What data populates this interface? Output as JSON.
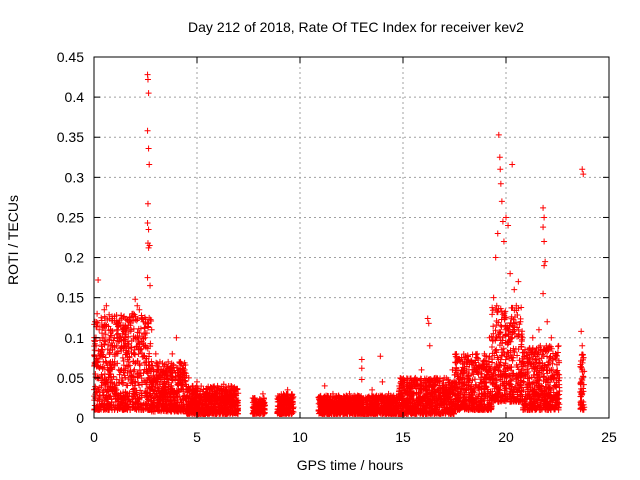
{
  "chart_data": {
    "type": "scatter",
    "title": "Day 212 of 2018, Rate Of TEC Index for receiver kev2",
    "xlabel": "GPS time / hours",
    "ylabel": "ROTI / TECUs",
    "xlim": [
      0,
      25
    ],
    "ylim": [
      0,
      0.45
    ],
    "xticks": [
      "0",
      "5",
      "10",
      "15",
      "20",
      "25"
    ],
    "yticks": [
      "0",
      "0.05",
      "0.1",
      "0.15",
      "0.2",
      "0.25",
      "0.3",
      "0.35",
      "0.4",
      "0.45"
    ],
    "grid": true,
    "marker": "+",
    "marker_color": "#ff0000",
    "series": [
      {
        "name": "ROTI",
        "points": [
          [
            0.05,
            0.12
          ],
          [
            0.1,
            0.09
          ],
          [
            0.15,
            0.13
          ],
          [
            0.2,
            0.172
          ],
          [
            0.25,
            0.11
          ],
          [
            0.3,
            0.08
          ],
          [
            0.35,
            0.125
          ],
          [
            0.4,
            0.1
          ],
          [
            0.45,
            0.07
          ],
          [
            0.5,
            0.135
          ],
          [
            0.55,
            0.095
          ],
          [
            0.6,
            0.14
          ],
          [
            0.7,
            0.06
          ],
          [
            0.8,
            0.11
          ],
          [
            0.9,
            0.085
          ],
          [
            1.0,
            0.07
          ],
          [
            1.1,
            0.09
          ],
          [
            1.2,
            0.06
          ],
          [
            1.3,
            0.1
          ],
          [
            1.4,
            0.075
          ],
          [
            1.5,
            0.09
          ],
          [
            1.6,
            0.065
          ],
          [
            1.7,
            0.12
          ],
          [
            1.8,
            0.11
          ],
          [
            1.9,
            0.13
          ],
          [
            2.0,
            0.148
          ],
          [
            2.1,
            0.14
          ],
          [
            2.2,
            0.135
          ],
          [
            2.3,
            0.125
          ],
          [
            2.4,
            0.12
          ],
          [
            2.5,
            0.1
          ],
          [
            2.6,
            0.428
          ],
          [
            2.62,
            0.422
          ],
          [
            2.65,
            0.405
          ],
          [
            2.6,
            0.358
          ],
          [
            2.65,
            0.336
          ],
          [
            2.68,
            0.316
          ],
          [
            2.62,
            0.267
          ],
          [
            2.6,
            0.243
          ],
          [
            2.65,
            0.235
          ],
          [
            2.62,
            0.218
          ],
          [
            2.65,
            0.212
          ],
          [
            2.7,
            0.215
          ],
          [
            2.6,
            0.175
          ],
          [
            2.72,
            0.165
          ],
          [
            2.8,
            0.11
          ],
          [
            3.0,
            0.08
          ],
          [
            3.2,
            0.07
          ],
          [
            3.4,
            0.06
          ],
          [
            3.6,
            0.07
          ],
          [
            3.8,
            0.08
          ],
          [
            4.0,
            0.1
          ],
          [
            4.2,
            0.07
          ],
          [
            4.4,
            0.06
          ],
          [
            4.6,
            0.05
          ],
          [
            4.8,
            0.04
          ],
          [
            5.0,
            0.045
          ],
          [
            5.3,
            0.03
          ],
          [
            5.6,
            0.035
          ],
          [
            6.0,
            0.04
          ],
          [
            6.3,
            0.042
          ],
          [
            6.6,
            0.03
          ],
          [
            6.9,
            0.025
          ],
          [
            7.8,
            0.025
          ],
          [
            8.0,
            0.02
          ],
          [
            8.2,
            0.03
          ],
          [
            9.0,
            0.025
          ],
          [
            9.2,
            0.03
          ],
          [
            9.4,
            0.035
          ],
          [
            9.6,
            0.028
          ],
          [
            11.0,
            0.025
          ],
          [
            11.2,
            0.04
          ],
          [
            11.6,
            0.03
          ],
          [
            12.0,
            0.025
          ],
          [
            12.4,
            0.03
          ],
          [
            12.8,
            0.028
          ],
          [
            13.0,
            0.073
          ],
          [
            13.0,
            0.062
          ],
          [
            13.0,
            0.048
          ],
          [
            13.5,
            0.035
          ],
          [
            13.9,
            0.077
          ],
          [
            14.0,
            0.045
          ],
          [
            14.3,
            0.03
          ],
          [
            14.8,
            0.03
          ],
          [
            15.2,
            0.04
          ],
          [
            15.6,
            0.05
          ],
          [
            15.9,
            0.06
          ],
          [
            16.2,
            0.124
          ],
          [
            16.25,
            0.118
          ],
          [
            16.3,
            0.09
          ],
          [
            16.6,
            0.05
          ],
          [
            17.0,
            0.05
          ],
          [
            17.4,
            0.06
          ],
          [
            17.8,
            0.07
          ],
          [
            18.2,
            0.06
          ],
          [
            18.6,
            0.08
          ],
          [
            18.9,
            0.07
          ],
          [
            19.2,
            0.1
          ],
          [
            19.4,
            0.15
          ],
          [
            19.5,
            0.2
          ],
          [
            19.6,
            0.23
          ],
          [
            19.65,
            0.353
          ],
          [
            19.7,
            0.325
          ],
          [
            19.72,
            0.31
          ],
          [
            19.75,
            0.292
          ],
          [
            19.8,
            0.27
          ],
          [
            19.85,
            0.245
          ],
          [
            19.9,
            0.22
          ],
          [
            20.0,
            0.25
          ],
          [
            20.1,
            0.24
          ],
          [
            20.2,
            0.18
          ],
          [
            20.3,
            0.316
          ],
          [
            20.4,
            0.16
          ],
          [
            20.5,
            0.14
          ],
          [
            20.6,
            0.17
          ],
          [
            20.7,
            0.12
          ],
          [
            20.8,
            0.1
          ],
          [
            21.0,
            0.08
          ],
          [
            21.3,
            0.1
          ],
          [
            21.6,
            0.11
          ],
          [
            21.8,
            0.262
          ],
          [
            21.85,
            0.25
          ],
          [
            21.8,
            0.238
          ],
          [
            21.85,
            0.22
          ],
          [
            21.9,
            0.195
          ],
          [
            21.85,
            0.19
          ],
          [
            21.8,
            0.155
          ],
          [
            22.0,
            0.12
          ],
          [
            22.2,
            0.1
          ],
          [
            22.4,
            0.08
          ],
          [
            22.6,
            0.05
          ],
          [
            23.7,
            0.31
          ],
          [
            23.75,
            0.304
          ],
          [
            23.65,
            0.108
          ],
          [
            23.7,
            0.09
          ],
          [
            23.75,
            0.075
          ],
          [
            23.7,
            0.06
          ],
          [
            23.65,
            0.045
          ],
          [
            23.7,
            0.03
          ],
          [
            23.75,
            0.02
          ]
        ],
        "dense_regions": [
          {
            "x_range": [
              0.0,
              2.8
            ],
            "y_range": [
              0.01,
              0.13
            ]
          },
          {
            "x_range": [
              2.8,
              4.5
            ],
            "y_range": [
              0.008,
              0.07
            ]
          },
          {
            "x_range": [
              4.5,
              7.0
            ],
            "y_range": [
              0.005,
              0.04
            ]
          },
          {
            "x_range": [
              7.7,
              8.3
            ],
            "y_range": [
              0.005,
              0.025
            ]
          },
          {
            "x_range": [
              8.9,
              9.7
            ],
            "y_range": [
              0.005,
              0.03
            ]
          },
          {
            "x_range": [
              10.9,
              14.8
            ],
            "y_range": [
              0.005,
              0.028
            ]
          },
          {
            "x_range": [
              14.8,
              17.5
            ],
            "y_range": [
              0.005,
              0.05
            ]
          },
          {
            "x_range": [
              17.5,
              19.3
            ],
            "y_range": [
              0.01,
              0.08
            ]
          },
          {
            "x_range": [
              19.3,
              20.8
            ],
            "y_range": [
              0.02,
              0.14
            ]
          },
          {
            "x_range": [
              20.8,
              22.6
            ],
            "y_range": [
              0.01,
              0.09
            ]
          },
          {
            "x_range": [
              23.6,
              23.8
            ],
            "y_range": [
              0.01,
              0.08
            ]
          }
        ]
      }
    ]
  }
}
